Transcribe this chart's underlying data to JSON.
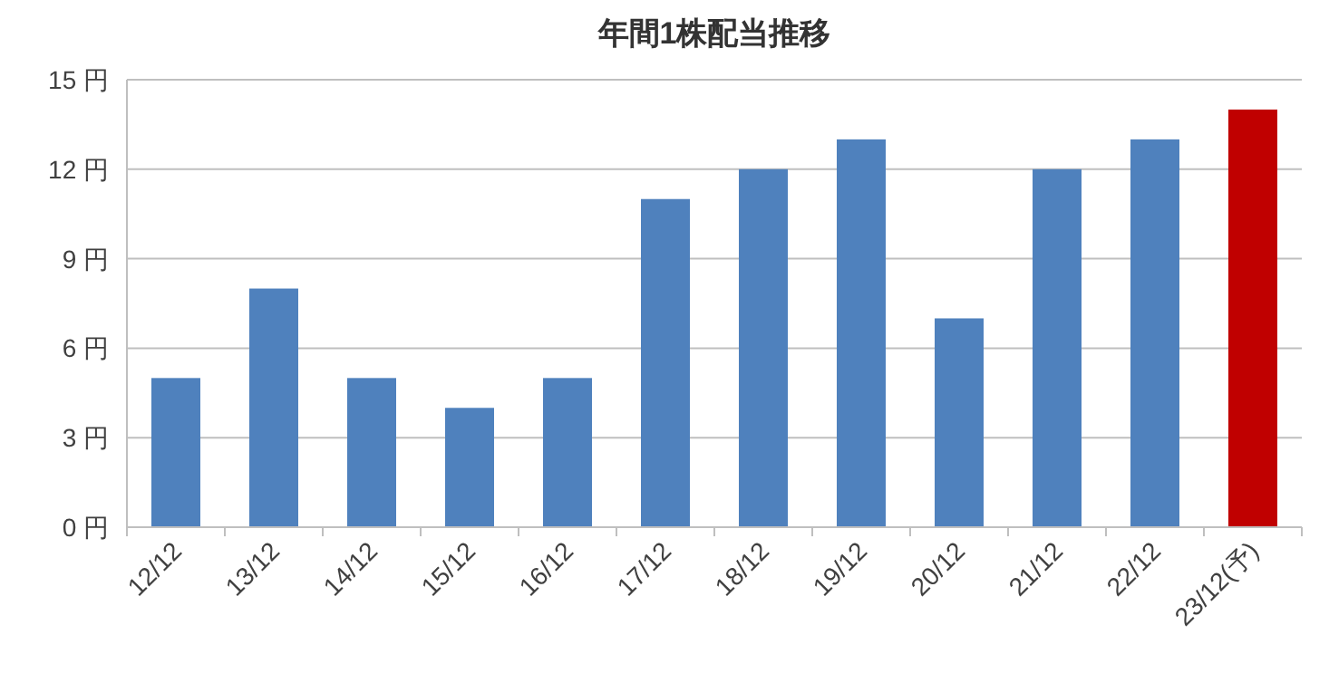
{
  "chart_data": {
    "type": "bar",
    "title": "年間1株配当推移",
    "categories": [
      "12/12",
      "13/12",
      "14/12",
      "15/12",
      "16/12",
      "17/12",
      "18/12",
      "19/12",
      "20/12",
      "21/12",
      "22/12",
      "23/12(予)"
    ],
    "values": [
      5,
      8,
      5,
      4,
      5,
      11,
      12,
      13,
      7,
      12,
      13,
      14
    ],
    "colors": [
      "#4f81bd",
      "#4f81bd",
      "#4f81bd",
      "#4f81bd",
      "#4f81bd",
      "#4f81bd",
      "#4f81bd",
      "#4f81bd",
      "#4f81bd",
      "#4f81bd",
      "#4f81bd",
      "#c00000"
    ],
    "ylim": [
      0,
      15
    ],
    "yticks": [
      {
        "value": 0,
        "label": "0 円"
      },
      {
        "value": 3,
        "label": "3 円"
      },
      {
        "value": 6,
        "label": "6 円"
      },
      {
        "value": 9,
        "label": "9 円"
      },
      {
        "value": 12,
        "label": "12 円"
      },
      {
        "value": 15,
        "label": "15 円"
      }
    ],
    "grid": "y"
  }
}
